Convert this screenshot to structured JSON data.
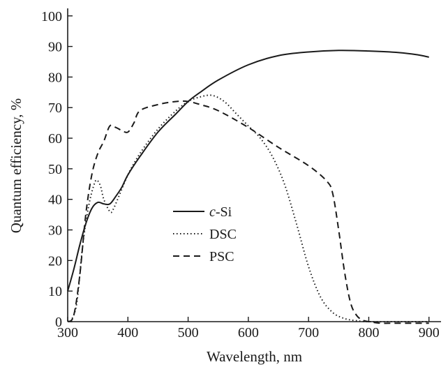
{
  "chart_data": {
    "type": "line",
    "title": "",
    "xlabel": "Wavelength, nm",
    "ylabel": "Quantum efficiency, %",
    "xlim": [
      300,
      920
    ],
    "ylim": [
      0,
      102
    ],
    "x_ticks": [
      300,
      400,
      500,
      600,
      700,
      800,
      900
    ],
    "y_ticks": [
      0,
      10,
      20,
      30,
      40,
      50,
      60,
      70,
      80,
      90,
      100
    ],
    "grid": false,
    "legend_position": "center-left",
    "series": [
      {
        "name": "c-Si",
        "name_prefix": "c",
        "name_suffix": "-Si",
        "style": "solid",
        "x": [
          300,
          310,
          320,
          330,
          340,
          350,
          360,
          370,
          380,
          390,
          400,
          420,
          450,
          480,
          500,
          520,
          550,
          600,
          650,
          700,
          750,
          800,
          850,
          880,
          900
        ],
        "y": [
          10,
          17,
          25,
          32,
          37,
          39,
          38.5,
          38.5,
          41,
          44,
          48,
          54,
          62,
          68,
          72,
          75,
          79,
          84,
          87,
          88.2,
          88.7,
          88.5,
          88,
          87.3,
          86.5
        ]
      },
      {
        "name": "DSC",
        "style": "dotted",
        "x": [
          305,
          315,
          325,
          335,
          345,
          350,
          355,
          360,
          370,
          375,
          385,
          400,
          420,
          450,
          480,
          500,
          520,
          540,
          560,
          580,
          600,
          620,
          640,
          660,
          680,
          700,
          720,
          740,
          760,
          780,
          800,
          850,
          900
        ],
        "y": [
          0,
          6,
          25,
          38,
          45.5,
          46,
          44,
          40,
          36,
          36.5,
          41,
          48,
          55,
          63,
          69,
          72,
          73.5,
          74,
          72,
          68,
          64,
          60,
          54,
          45,
          32,
          18,
          8,
          3,
          1,
          0.3,
          0,
          0,
          0
        ]
      },
      {
        "name": "PSC",
        "style": "dashed",
        "x": [
          300,
          310,
          320,
          330,
          340,
          350,
          360,
          370,
          380,
          390,
          400,
          410,
          420,
          450,
          480,
          500,
          520,
          550,
          600,
          650,
          700,
          730,
          740,
          750,
          760,
          770,
          780,
          790,
          800,
          820,
          850,
          900
        ],
        "y": [
          0,
          2,
          15,
          35,
          48,
          55,
          59,
          64,
          63.5,
          62.5,
          62,
          65,
          69,
          71,
          72,
          72,
          71,
          69,
          63.5,
          57,
          51,
          46,
          42,
          30,
          16,
          6,
          2,
          0.5,
          0,
          -0.5,
          -0.5,
          -0.5
        ]
      }
    ]
  }
}
